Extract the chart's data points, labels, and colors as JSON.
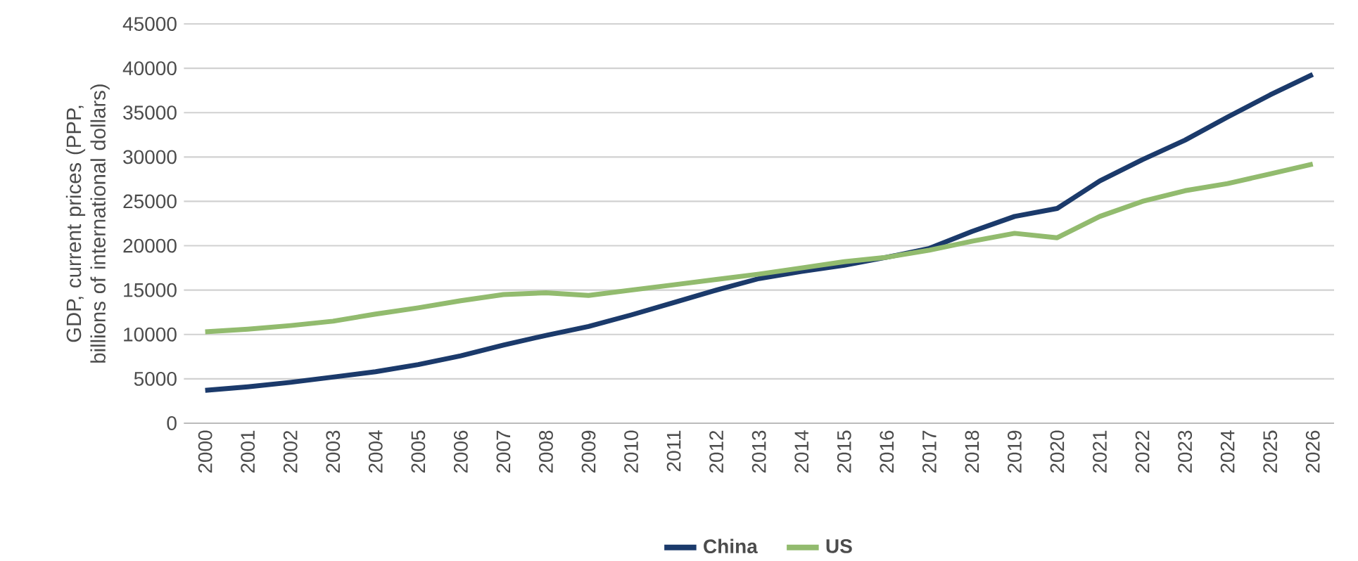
{
  "chart_data": {
    "type": "line",
    "ylabel": "GDP, current prices (PPP, billions of international dollars)",
    "categories": [
      "2000",
      "2001",
      "2002",
      "2003",
      "2004",
      "2005",
      "2006",
      "2007",
      "2008",
      "2009",
      "2010",
      "2011",
      "2012",
      "2013",
      "2014",
      "2015",
      "2016",
      "2017",
      "2018",
      "2019",
      "2020",
      "2021",
      "2022",
      "2023",
      "2024",
      "2025",
      "2026"
    ],
    "series": [
      {
        "name": "China",
        "color": "#1b3a6b",
        "values": [
          3700,
          4100,
          4600,
          5200,
          5800,
          6600,
          7600,
          8800,
          9900,
          10900,
          12200,
          13600,
          15000,
          16300,
          17100,
          17800,
          18700,
          19700,
          21600,
          23300,
          24200,
          27300,
          29700,
          31900,
          34500,
          37000,
          39300
        ]
      },
      {
        "name": "US",
        "color": "#92bb6e",
        "values": [
          10300,
          10600,
          11000,
          11500,
          12300,
          13000,
          13800,
          14500,
          14700,
          14400,
          15000,
          15600,
          16200,
          16800,
          17500,
          18200,
          18700,
          19500,
          20500,
          21400,
          20900,
          23300,
          25000,
          26200,
          27000,
          28100,
          29200
        ]
      }
    ],
    "ylim": [
      0,
      45000
    ],
    "yticks": [
      0,
      5000,
      10000,
      15000,
      20000,
      25000,
      30000,
      35000,
      40000,
      45000
    ],
    "grid": "y",
    "legend": "bottom",
    "marker": "none",
    "line_style": "solid"
  }
}
